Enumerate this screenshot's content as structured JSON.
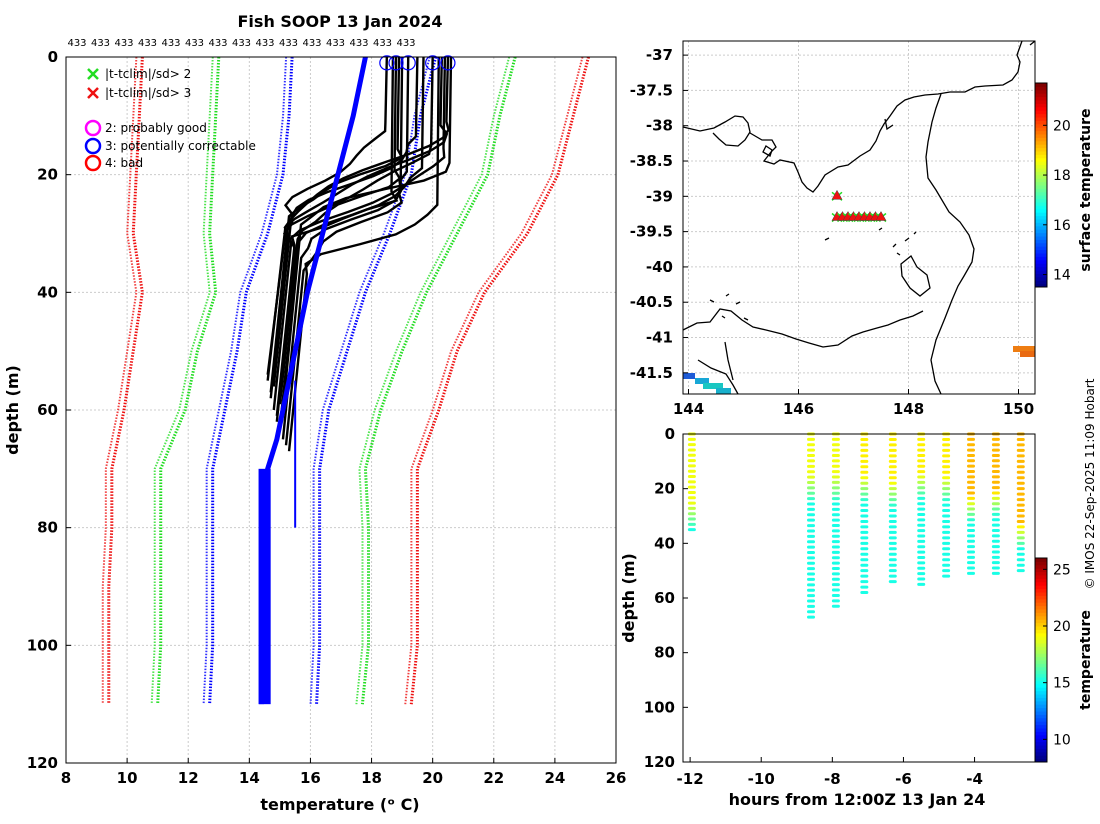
{
  "page": {
    "title": "Fish SOOP 13 Jan 2024",
    "count_label": "433",
    "count_repeat": 15,
    "credit": "© IMOS 22-Sep-2025 11:09 Hobart"
  },
  "colors": {
    "profile": "#000000",
    "climatology": "#0000ff",
    "sd2": "#22dd22",
    "sd3": "#ee1111",
    "flag2": "#ff00ff",
    "flag3": "#0000ff",
    "flag4": "#ff0000",
    "coast": "#000000",
    "grid": "#cccccc"
  },
  "chart_data": [
    {
      "type": "line",
      "name": "profiles",
      "xlabel": "temperature (ᵒ C)",
      "ylabel": "depth (m)",
      "xlim": [
        8,
        26
      ],
      "ylim": [
        0,
        120
      ],
      "xticks": [
        8,
        10,
        12,
        14,
        16,
        18,
        20,
        22,
        24,
        26
      ],
      "yticks": [
        0,
        20,
        40,
        60,
        80,
        100,
        120
      ],
      "grid": true,
      "legend": {
        "position": "top-left",
        "entries": [
          {
            "marker": "x",
            "color": "sd2",
            "label": "|t-tclim|/sd> 2"
          },
          {
            "marker": "x",
            "color": "sd3",
            "label": "|t-tclim|/sd> 3"
          },
          {
            "marker": "o",
            "color": "flag2",
            "label": "2: probably good"
          },
          {
            "marker": "o",
            "color": "flag3",
            "label": "3: potentially correctable"
          },
          {
            "marker": "o",
            "color": "flag4",
            "label": "4: bad"
          }
        ]
      },
      "climatology_mean": {
        "depth": [
          0,
          10,
          20,
          30,
          40,
          50,
          60,
          65,
          70,
          80,
          90,
          100,
          110
        ],
        "temp": [
          17.8,
          17.4,
          16.9,
          16.4,
          15.9,
          15.5,
          15.1,
          14.9,
          14.6,
          14.5,
          14.5,
          14.4,
          14.4
        ]
      },
      "envelope_depth": [
        0,
        10,
        20,
        30,
        40,
        50,
        60,
        70,
        80,
        90,
        100,
        110
      ],
      "envelopes": [
        {
          "name": "sd3-low",
          "color": "sd3",
          "temp": [
            10.5,
            10.4,
            10.3,
            10.2,
            10.5,
            10.2,
            9.9,
            9.5,
            9.5,
            9.4,
            9.4,
            9.4
          ]
        },
        {
          "name": "sd2-low",
          "color": "sd2",
          "temp": [
            13.0,
            12.9,
            12.8,
            12.7,
            12.9,
            12.3,
            11.9,
            11.1,
            11.1,
            11.1,
            11.1,
            11.0
          ]
        },
        {
          "name": "sd1-low",
          "color": "climatology",
          "temp": [
            15.4,
            15.3,
            15.1,
            14.6,
            13.9,
            13.6,
            13.2,
            12.8,
            12.8,
            12.8,
            12.8,
            12.7
          ]
        },
        {
          "name": "sd1-high",
          "color": "climatology",
          "temp": [
            20.1,
            19.6,
            19.3,
            18.6,
            17.8,
            17.2,
            16.6,
            16.3,
            16.3,
            16.3,
            16.3,
            16.2
          ]
        },
        {
          "name": "sd2-high",
          "color": "sd2",
          "temp": [
            22.7,
            22.2,
            21.8,
            20.8,
            19.8,
            19.0,
            18.3,
            17.8,
            17.9,
            17.9,
            17.9,
            17.7
          ]
        },
        {
          "name": "sd3-high",
          "color": "sd3",
          "temp": [
            25.1,
            24.6,
            24.1,
            23.1,
            21.7,
            20.8,
            20.2,
            19.5,
            19.5,
            19.5,
            19.5,
            19.3
          ]
        }
      ],
      "profiles": [
        {
          "surface_temp": 20.5,
          "mld": 11,
          "thermo_bottom": 28,
          "deep_temp": 14.6,
          "max_depth": 55
        },
        {
          "surface_temp": 20.3,
          "mld": 13,
          "thermo_bottom": 29,
          "deep_temp": 14.7,
          "max_depth": 58
        },
        {
          "surface_temp": 20.0,
          "mld": 15,
          "thermo_bottom": 30,
          "deep_temp": 14.8,
          "max_depth": 60
        },
        {
          "surface_temp": 20.4,
          "mld": 17,
          "thermo_bottom": 32,
          "deep_temp": 14.9,
          "max_depth": 62
        },
        {
          "surface_temp": 19.7,
          "mld": 19,
          "thermo_bottom": 33,
          "deep_temp": 15.0,
          "max_depth": 63
        },
        {
          "surface_temp": 19.2,
          "mld": 21,
          "thermo_bottom": 34,
          "deep_temp": 15.1,
          "max_depth": 65
        },
        {
          "surface_temp": 19.0,
          "mld": 23,
          "thermo_bottom": 35,
          "deep_temp": 15.2,
          "max_depth": 66
        },
        {
          "surface_temp": 18.9,
          "mld": 16,
          "thermo_bottom": 27,
          "deep_temp": 14.7,
          "max_depth": 57
        },
        {
          "surface_temp": 18.7,
          "mld": 24,
          "thermo_bottom": 31,
          "deep_temp": 14.9,
          "max_depth": 61
        },
        {
          "surface_temp": 18.5,
          "mld": 12,
          "thermo_bottom": 26,
          "deep_temp": 14.8,
          "max_depth": 56
        },
        {
          "surface_temp": 20.2,
          "mld": 26,
          "thermo_bottom": 36,
          "deep_temp": 15.3,
          "max_depth": 67
        },
        {
          "surface_temp": 19.5,
          "mld": 14,
          "thermo_bottom": 29,
          "deep_temp": 14.6,
          "max_depth": 54
        },
        {
          "surface_temp": 20.6,
          "mld": 18,
          "thermo_bottom": 28,
          "deep_temp": 15.1,
          "max_depth": 60
        },
        {
          "surface_temp": 18.8,
          "mld": 20,
          "thermo_bottom": 30,
          "deep_temp": 15.0,
          "max_depth": 59
        }
      ],
      "flag_markers": [
        {
          "flag": 3,
          "temp": 18.5,
          "depth": 1
        },
        {
          "flag": 3,
          "temp": 18.8,
          "depth": 1
        },
        {
          "flag": 3,
          "temp": 19.2,
          "depth": 1
        },
        {
          "flag": 3,
          "temp": 20.0,
          "depth": 1
        },
        {
          "flag": 3,
          "temp": 20.5,
          "depth": 1
        }
      ]
    },
    {
      "type": "scatter",
      "name": "map",
      "xlim": [
        143.9,
        150.3
      ],
      "ylim": [
        -41.8,
        -36.8
      ],
      "xticks": [
        144,
        146,
        148,
        150
      ],
      "yticks": [
        -37,
        -37.5,
        -38,
        -38.5,
        -39,
        -39.5,
        -40,
        -40.5,
        -41,
        -41.5
      ],
      "track_points": [
        [
          146.7,
          -39.0
        ],
        [
          146.7,
          -39.3
        ],
        [
          146.8,
          -39.3
        ],
        [
          146.9,
          -39.3
        ],
        [
          147.0,
          -39.3
        ],
        [
          147.1,
          -39.3
        ],
        [
          147.2,
          -39.3
        ],
        [
          147.3,
          -39.3
        ],
        [
          147.4,
          -39.3
        ],
        [
          147.5,
          -39.3
        ]
      ],
      "colorbar": {
        "label": "surface temperature",
        "range": [
          13.5,
          21.7
        ],
        "ticks": [
          14,
          16,
          18,
          20
        ]
      }
    },
    {
      "type": "scatter",
      "name": "time-depth",
      "xlabel": "hours from 12:00Z 13 Jan 24",
      "ylabel": "depth (m)",
      "xlim": [
        -12.2,
        -2.3
      ],
      "ylim": [
        0,
        120
      ],
      "xticks": [
        -12,
        -10,
        -8,
        -6,
        -4
      ],
      "yticks": [
        0,
        20,
        40,
        60,
        80,
        100,
        120
      ],
      "casts": [
        {
          "hours": -11.95,
          "max_depth": 35,
          "surface_temp": 19.0,
          "mld": 25
        },
        {
          "hours": -8.6,
          "max_depth": 67,
          "surface_temp": 19.0,
          "mld": 15
        },
        {
          "hours": -7.9,
          "max_depth": 63,
          "surface_temp": 19.0,
          "mld": 15
        },
        {
          "hours": -7.1,
          "max_depth": 58,
          "surface_temp": 19.5,
          "mld": 15
        },
        {
          "hours": -6.3,
          "max_depth": 54,
          "surface_temp": 19.5,
          "mld": 17
        },
        {
          "hours": -5.5,
          "max_depth": 55,
          "surface_temp": 19.5,
          "mld": 14
        },
        {
          "hours": -4.8,
          "max_depth": 52,
          "surface_temp": 19.5,
          "mld": 15
        },
        {
          "hours": -4.1,
          "max_depth": 51,
          "surface_temp": 20.5,
          "mld": 22
        },
        {
          "hours": -3.4,
          "max_depth": 51,
          "surface_temp": 20.5,
          "mld": 20
        },
        {
          "hours": -2.7,
          "max_depth": 50,
          "surface_temp": 20.5,
          "mld": 32
        }
      ],
      "colorbar": {
        "label": "temperature",
        "range": [
          8,
          26
        ],
        "ticks": [
          10,
          15,
          20,
          25
        ]
      }
    }
  ]
}
